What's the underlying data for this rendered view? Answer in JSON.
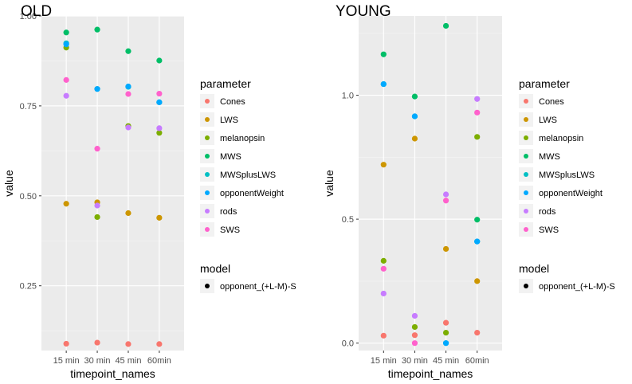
{
  "parameter_colors": {
    "Cones": "#F8766D",
    "LWS": "#CD9600",
    "melanopsin": "#7CAE00",
    "MWS": "#00BE67",
    "MWSplusLWS": "#00BFC4",
    "opponentWeight": "#00A9FF",
    "rods": "#C77CFF",
    "SWS": "#FF61CC"
  },
  "chart_data": [
    {
      "type": "scatter",
      "title": "OLD",
      "xlabel": "timepoint_names",
      "ylabel": "value",
      "categories": [
        "15 min",
        "30 min",
        "45 min",
        "60min"
      ],
      "ylim": [
        0.07,
        1.0
      ],
      "yticks": [
        0.25,
        0.5,
        0.75,
        1.0
      ],
      "ytick_labels": [
        "0.25",
        "0.50",
        "0.75",
        "1.00"
      ],
      "grid": true,
      "legend_position": "right",
      "legend_title": "parameter",
      "model_legend_title": "model",
      "model_label": "opponent_(+L-M)-S",
      "series": [
        {
          "name": "Cones",
          "values": [
            0.089,
            0.092,
            0.088,
            0.088
          ]
        },
        {
          "name": "LWS",
          "values": [
            0.478,
            0.482,
            0.452,
            0.439
          ]
        },
        {
          "name": "melanopsin",
          "values": [
            0.912,
            0.441,
            0.694,
            0.675
          ]
        },
        {
          "name": "MWS",
          "values": [
            0.954,
            0.962,
            0.902,
            0.876
          ]
        },
        {
          "name": "MWSplusLWS",
          "values": [
            0.924,
            0.797,
            0.803,
            0.76
          ]
        },
        {
          "name": "opponentWeight",
          "values": [
            0.921,
            0.797,
            0.804,
            0.76
          ]
        },
        {
          "name": "rods",
          "values": [
            0.778,
            0.473,
            0.69,
            0.688
          ]
        },
        {
          "name": "SWS",
          "values": [
            0.822,
            0.631,
            0.783,
            0.784
          ]
        }
      ]
    },
    {
      "type": "scatter",
      "title": "YOUNG",
      "xlabel": "timepoint_names",
      "ylabel": "value",
      "categories": [
        "15 min",
        "30 min",
        "45 min",
        "60min"
      ],
      "ylim": [
        -0.03,
        1.32
      ],
      "yticks": [
        0.0,
        0.5,
        1.0
      ],
      "ytick_labels": [
        "0.0",
        "0.5",
        "1.0"
      ],
      "grid": true,
      "legend_position": "right",
      "legend_title": "parameter",
      "model_legend_title": "model",
      "model_label": "opponent_(+L-M)-S",
      "series": [
        {
          "name": "Cones",
          "values": [
            0.03,
            0.032,
            0.082,
            0.042
          ]
        },
        {
          "name": "LWS",
          "values": [
            0.72,
            0.825,
            0.38,
            0.25
          ]
        },
        {
          "name": "melanopsin",
          "values": [
            0.332,
            0.065,
            0.042,
            0.832
          ]
        },
        {
          "name": "MWS",
          "values": [
            1.165,
            0.995,
            1.28,
            0.498
          ]
        },
        {
          "name": "MWSplusLWS",
          "values": [
            1.045,
            0.915,
            0.0,
            0.41
          ]
        },
        {
          "name": "opponentWeight",
          "values": [
            1.045,
            0.915,
            0.0,
            0.41
          ]
        },
        {
          "name": "rods",
          "values": [
            0.2,
            0.11,
            0.6,
            0.985
          ]
        },
        {
          "name": "SWS",
          "values": [
            0.3,
            0.0,
            0.575,
            0.93
          ]
        }
      ]
    }
  ]
}
